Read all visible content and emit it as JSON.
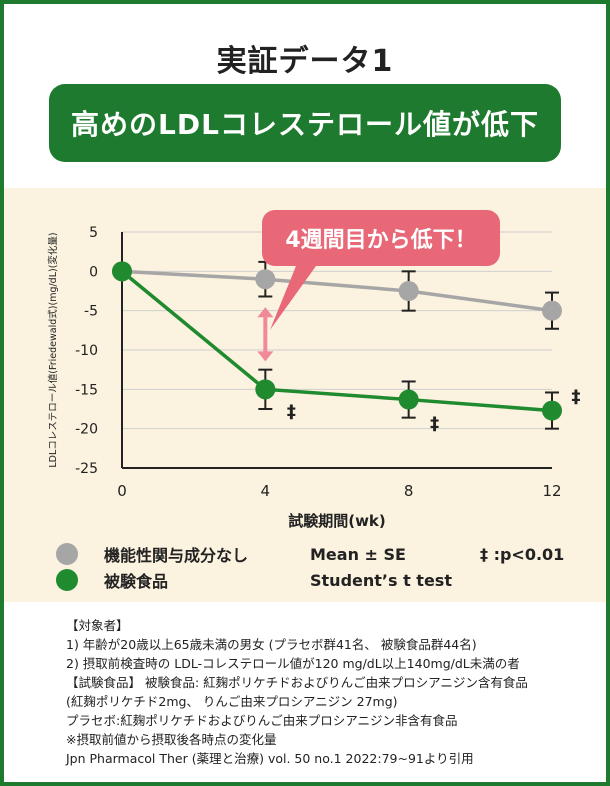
{
  "heading": "実証データ1",
  "banner": "高めのLDLコレステロール値が低下",
  "callout": "4週間目から低下！",
  "colors": {
    "brand_green": "#1e7a2e",
    "series_green": "#1f8a2e",
    "series_gray": "#a6a6a6",
    "callout_pink": "#e86878",
    "arrow_pink": "#f08a9a",
    "panel_bg": "#fbf2df"
  },
  "legend": {
    "control": "機能性関与成分なし",
    "test": "被験食品",
    "stat1": "Mean ± SE",
    "stat2": "Student’s t test",
    "sig": "‡ :p<0.01"
  },
  "chart_data": {
    "type": "line",
    "xlabel": "試験期間(wk)",
    "ylabel": "LDLコレステロール値(Friedewald式)(mg/dL)(変化量)",
    "x": [
      0,
      4,
      8,
      12
    ],
    "x_ticks": [
      "0",
      "4",
      "8",
      "12"
    ],
    "ylim": [
      -25,
      5
    ],
    "y_ticks": [
      "5",
      "0",
      "-5",
      "-10",
      "-15",
      "-20",
      "-25"
    ],
    "grid": true,
    "series": [
      {
        "name": "機能性関与成分なし",
        "values": [
          0,
          -1.0,
          -2.5,
          -5.0
        ],
        "se": [
          0,
          2.2,
          2.5,
          2.3
        ]
      },
      {
        "name": "被験食品",
        "values": [
          0,
          -15.0,
          -16.3,
          -17.7
        ],
        "se": [
          0,
          2.5,
          2.3,
          2.3
        ]
      }
    ],
    "significance_marker": "‡"
  },
  "notes": [
    "【対象者】",
    "1) 年齢が20歳以上65歳未満の男女 (プラセボ群41名、 被験食品群44名)",
    "2) 摂取前検査時の LDL-コレステロール値が120 mg/dL以上140mg/dL未満の者",
    "【試験食品】 被験食品: 紅麹ポリケチドおよびりんご由来プロシアニジン含有食品",
    "(紅麹ポリケチド2mg、 りんご由来プロシアニジン 27mg)",
    "プラセボ:紅麹ポリケチドおよびりんご由来プロシアニジン非含有食品",
    "※摂取前値から摂取後各時点の変化量",
    "Jpn Pharmacol Ther (薬理と治療) vol. 50 no.1 2022:79~91より引用"
  ]
}
